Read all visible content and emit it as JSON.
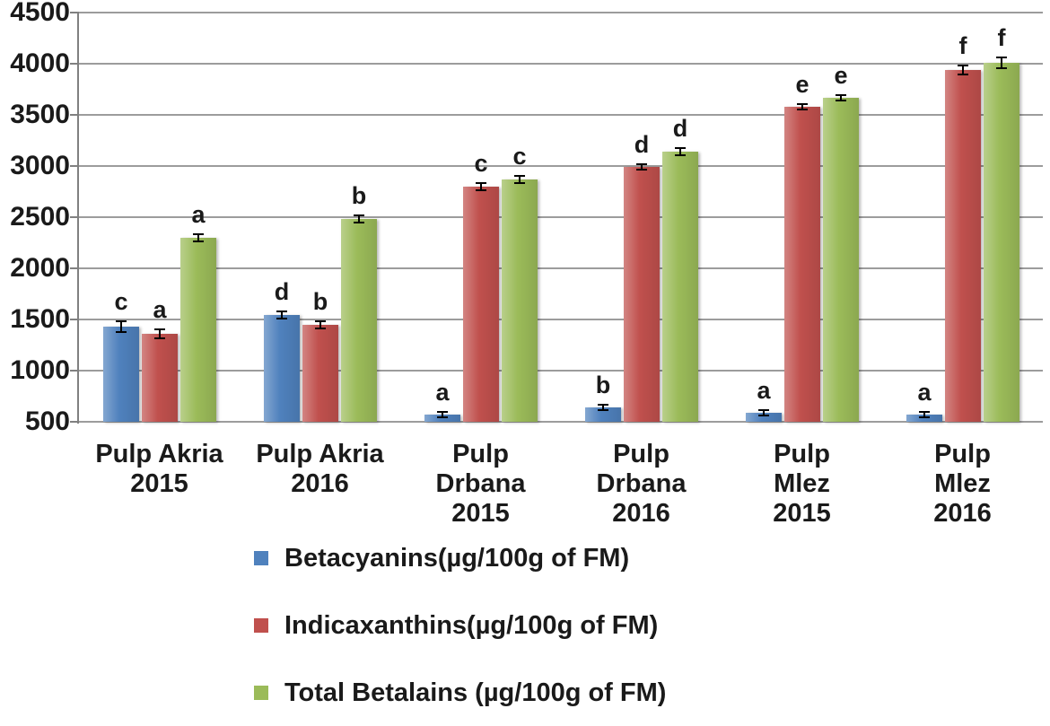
{
  "chart_data": {
    "type": "bar",
    "title": "",
    "categories": [
      "Pulp Akria\n2015",
      "Pulp Akria\n2016",
      "Pulp\nDrbana\n2015",
      "Pulp\nDrbana\n2016",
      "Pulp\nMlez\n2015",
      "Pulp\nMlez\n2016"
    ],
    "series": [
      {
        "name": "Betacyanins(µg/100g of FM)",
        "color": "#4F81BD",
        "values": [
          1430,
          1540,
          570,
          640,
          590,
          570
        ],
        "errors": [
          60,
          45,
          30,
          35,
          30,
          30
        ],
        "letters": [
          "c",
          "d",
          "a",
          "b",
          "a",
          "a"
        ]
      },
      {
        "name": "Indicaxanthins(µg/100g of FM)",
        "color": "#C0504D",
        "values": [
          1360,
          1450,
          2800,
          2990,
          3580,
          3940
        ],
        "errors": [
          50,
          45,
          45,
          35,
          25,
          50
        ],
        "letters": [
          "a",
          "b",
          "c",
          "d",
          "e",
          "f"
        ]
      },
      {
        "name": "Total Betalains (µg/100g of FM)",
        "color": "#9BBB59",
        "values": [
          2300,
          2480,
          2870,
          3140,
          3670,
          4010
        ],
        "errors": [
          40,
          40,
          40,
          40,
          30,
          60
        ],
        "letters": [
          "a",
          "b",
          "c",
          "d",
          "e",
          "f"
        ]
      }
    ],
    "ylim": [
      500,
      4500
    ],
    "yticks": [
      500,
      1000,
      1500,
      2000,
      2500,
      3000,
      3500,
      4000,
      4500
    ],
    "grid": true,
    "legend_position": "bottom-left"
  },
  "colors": {
    "grid": "#9C9C9C",
    "axis": "#808080",
    "text": "#1A1A1A",
    "error_bar": "#000000",
    "background": "#FFFFFF"
  }
}
